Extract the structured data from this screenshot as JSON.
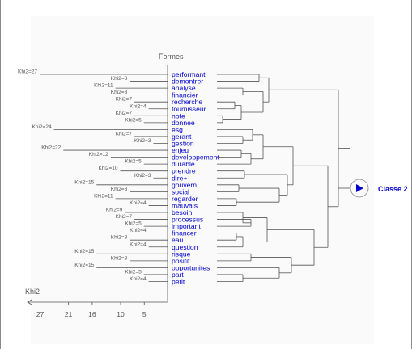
{
  "chart_data": {
    "type": "dendrogram",
    "title": "",
    "axis_title_top": "Formes",
    "axis_title_bottom": "Khi2",
    "x_ticks": [
      27,
      21,
      16,
      10,
      5
    ],
    "class_label": "Classe 2",
    "colors": {
      "words": "#0000cc",
      "lines": "#555555",
      "chi_labels": "#555555",
      "class_label": "#0000cc",
      "marker": "#0000cc"
    },
    "words": [
      {
        "word": "performant",
        "chi2": "Khi2=27"
      },
      {
        "word": "demontrer",
        "chi2": "Khi2=8"
      },
      {
        "word": "analyse",
        "chi2": "Khi2=11"
      },
      {
        "word": "financier",
        "chi2": "Khi2=8"
      },
      {
        "word": "recherche",
        "chi2": "Khi2=7"
      },
      {
        "word": "fournisseur",
        "chi2": "Khi2=4"
      },
      {
        "word": "note",
        "chi2": "Khi2=7"
      },
      {
        "word": "donnee",
        "chi2": "Khi2=5"
      },
      {
        "word": "esg",
        "chi2": "Khi2=24"
      },
      {
        "word": "gerant",
        "chi2": "Khi2=7"
      },
      {
        "word": "gestion",
        "chi2": "Khi2=3"
      },
      {
        "word": "enjeu",
        "chi2": "Khi2=22"
      },
      {
        "word": "developpement",
        "chi2": "Khi2=12"
      },
      {
        "word": "durable",
        "chi2": "Khi2=5"
      },
      {
        "word": "prendre",
        "chi2": "Khi2=10"
      },
      {
        "word": "dire+",
        "chi2": "Khi2=3"
      },
      {
        "word": "gouvern",
        "chi2": "Khi2=15"
      },
      {
        "word": "social",
        "chi2": "Khi2=8"
      },
      {
        "word": "regarder",
        "chi2": "Khi2=11"
      },
      {
        "word": "mauvais",
        "chi2": "Khi2=4"
      },
      {
        "word": "besoin",
        "chi2": "Khi2=9"
      },
      {
        "word": "processus",
        "chi2": "Khi2=7"
      },
      {
        "word": "important",
        "chi2": "Khi2=5"
      },
      {
        "word": "financer",
        "chi2": "Khi2=4"
      },
      {
        "word": "eau",
        "chi2": "Khi2=8"
      },
      {
        "word": "question",
        "chi2": "Khi2=4"
      },
      {
        "word": "risque",
        "chi2": "Khi2=15"
      },
      {
        "word": "positif",
        "chi2": "Khi2=8"
      },
      {
        "word": "opportunites",
        "chi2": "Khi2=15"
      },
      {
        "word": "part",
        "chi2": "Khi2=5"
      },
      {
        "word": "petit",
        "chi2": "Khi2=4"
      }
    ]
  }
}
